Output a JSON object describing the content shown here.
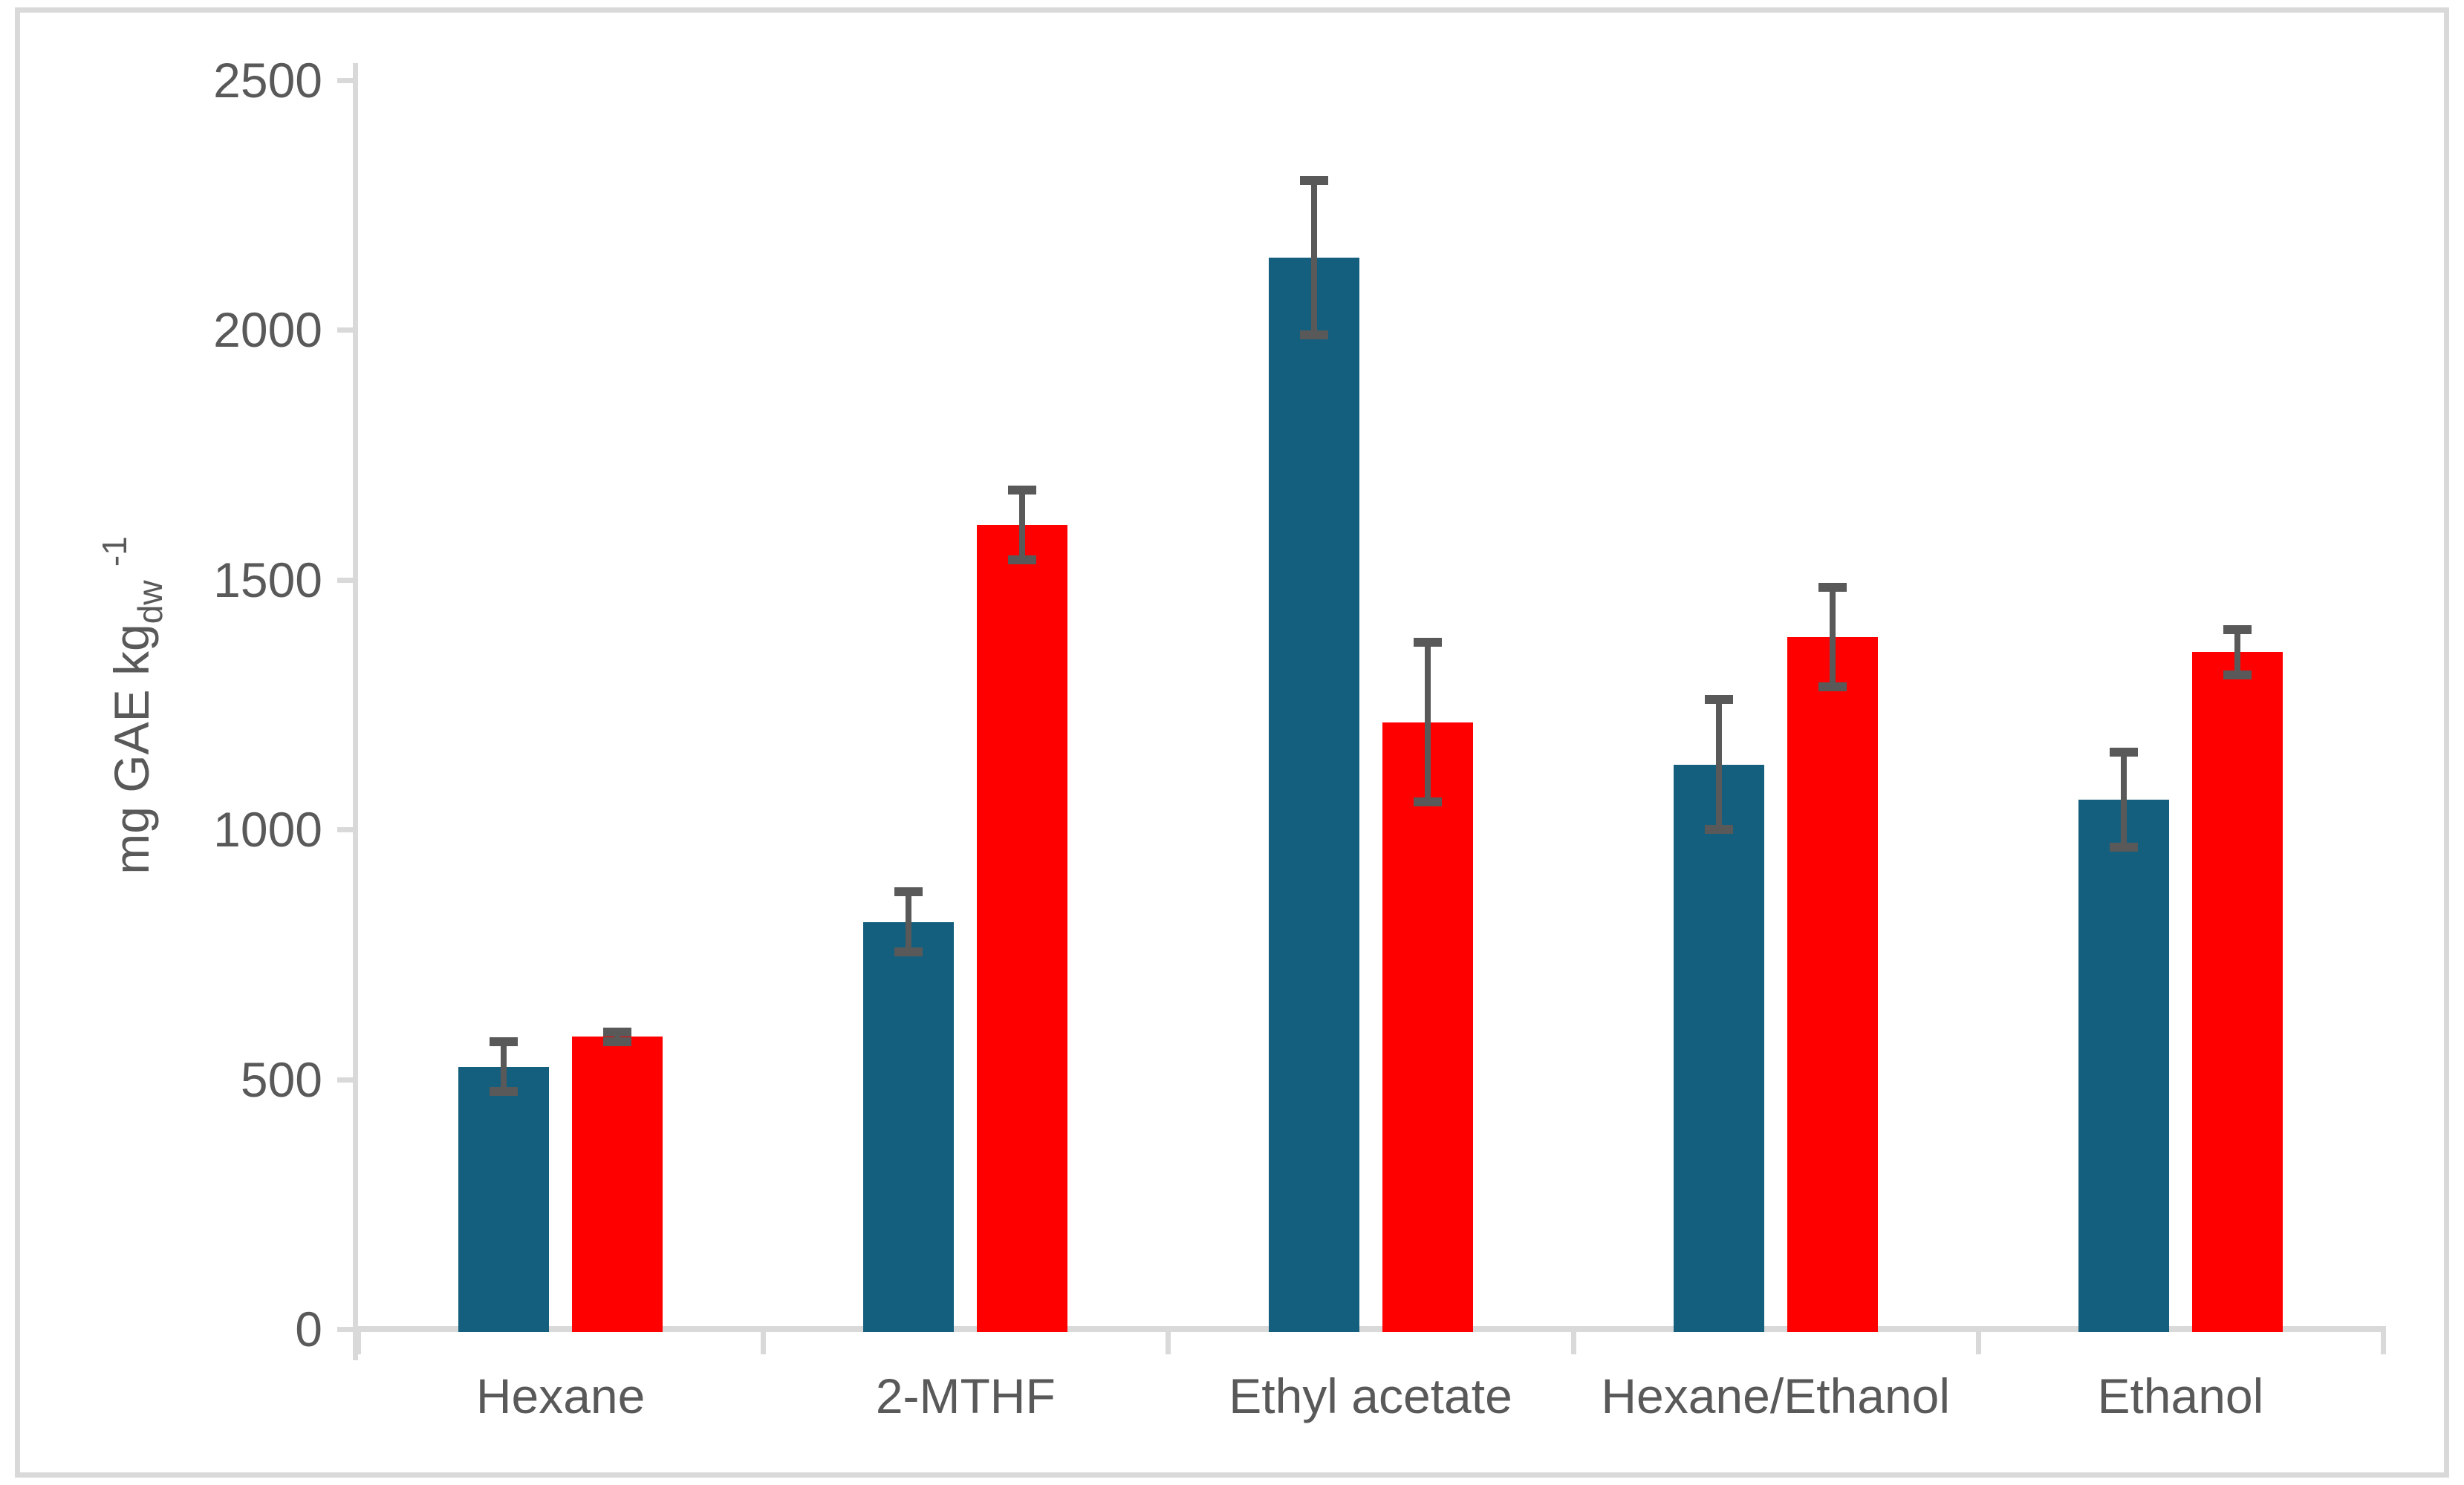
{
  "chart_data": {
    "type": "bar",
    "title": "",
    "categories": [
      "Hexane",
      "2-MTHF",
      "Ethyl acetate",
      "Hexane/Ethanol",
      "Ethanol"
    ],
    "series": [
      {
        "name": "blue-series",
        "color": "#155f7e",
        "values": [
          525,
          815,
          2145,
          1130,
          1060
        ],
        "errors": [
          50,
          60,
          155,
          130,
          95
        ]
      },
      {
        "name": "red-series",
        "color": "#fe0000",
        "values": [
          585,
          1610,
          1215,
          1385,
          1355
        ],
        "errors": [
          10,
          70,
          160,
          100,
          45
        ]
      }
    ],
    "ylabel_main": "mg GAE kg",
    "ylabel_sub": "dw",
    "ylabel_sup": "-1",
    "yticks": [
      0,
      500,
      1000,
      1500,
      2000,
      2500
    ],
    "ylim": [
      0,
      2500
    ],
    "grid": false,
    "legend": "none",
    "error_bars": true,
    "axis_color": "#d9d9d9",
    "text_color": "#595959",
    "error_color": "#595959",
    "background": "#ffffff"
  }
}
